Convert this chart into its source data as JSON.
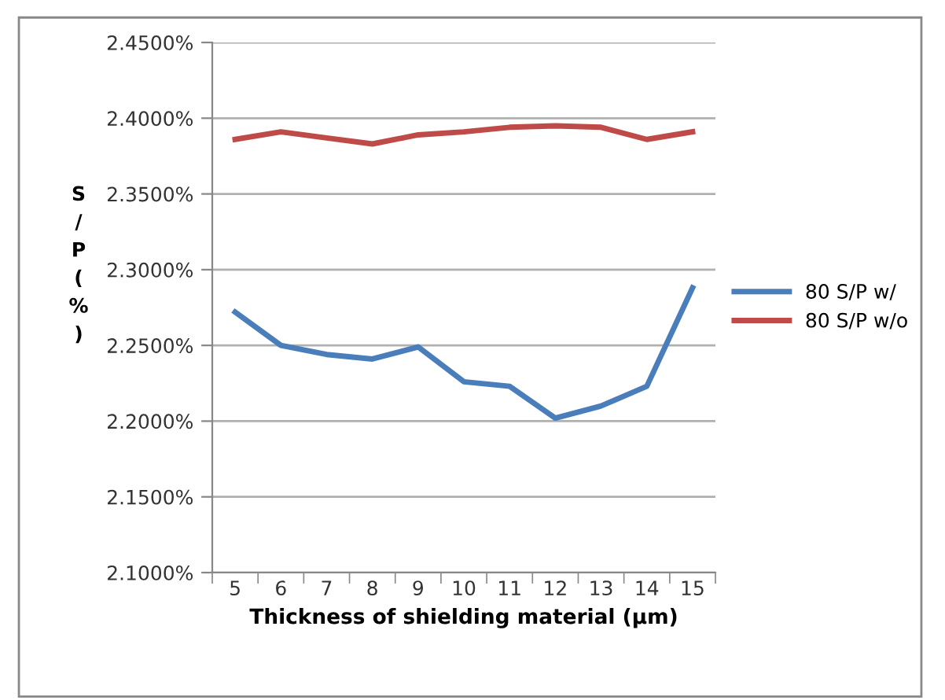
{
  "chart_data": {
    "type": "line",
    "xlabel": "Thickness of shielding material (μm)",
    "ylabel": "S/P (%)",
    "categories": [
      "5",
      "6",
      "7",
      "8",
      "9",
      "10",
      "11",
      "12",
      "13",
      "14",
      "15"
    ],
    "series": [
      {
        "name": "80 S/P w/",
        "color": "#4a7ebb",
        "values": [
          2.272,
          2.25,
          2.244,
          2.241,
          2.249,
          2.226,
          2.223,
          2.202,
          2.21,
          2.223,
          2.288
        ]
      },
      {
        "name": "80 S/P w/o",
        "color": "#be4b48",
        "values": [
          2.386,
          2.391,
          2.387,
          2.383,
          2.389,
          2.391,
          2.394,
          2.395,
          2.394,
          2.386,
          2.391
        ]
      }
    ],
    "ylim": [
      2.1,
      2.45
    ],
    "yticks": [
      {
        "value": 2.1,
        "label": "2.1000%"
      },
      {
        "value": 2.15,
        "label": "2.1500%"
      },
      {
        "value": 2.2,
        "label": "2.2000%"
      },
      {
        "value": 2.25,
        "label": "2.2500%"
      },
      {
        "value": 2.3,
        "label": "2.3000%"
      },
      {
        "value": 2.35,
        "label": "2.3500%"
      },
      {
        "value": 2.4,
        "label": "2.4000%"
      },
      {
        "value": 2.45,
        "label": "2.4500%"
      }
    ],
    "grid": "y",
    "legend": "right",
    "marker": "none",
    "line_style": "solid"
  }
}
